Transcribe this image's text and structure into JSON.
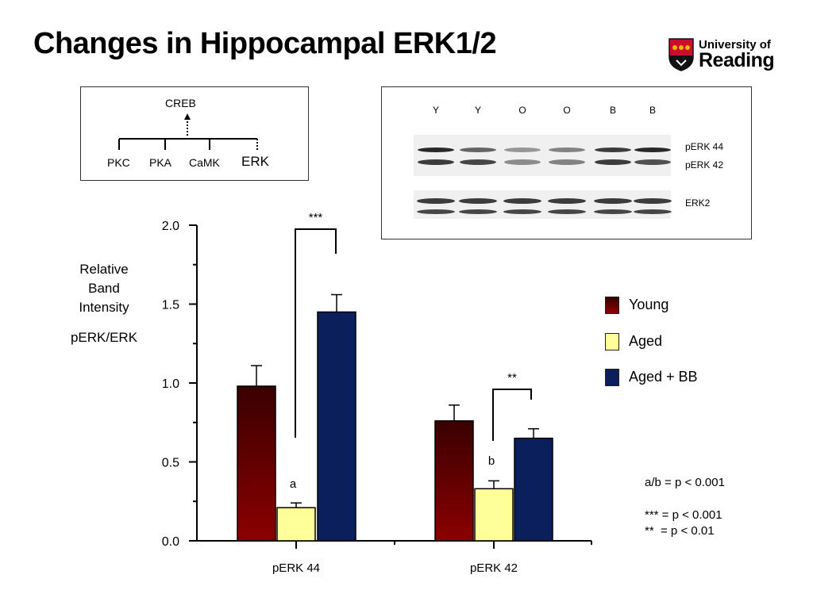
{
  "slide": {
    "title": "Changes in Hippocampal ERK1/2",
    "logo": {
      "line1": "University of",
      "line2": "Reading",
      "colors": {
        "red": "#c8102e",
        "black": "#111111",
        "gold": "#f2b300"
      }
    }
  },
  "pathway": {
    "top": "CREB",
    "inputs": [
      "PKC",
      "PKA",
      "CaMK",
      "ERK"
    ]
  },
  "blot": {
    "lanes": [
      "Y",
      "Y",
      "O",
      "O",
      "B",
      "B"
    ],
    "labels": [
      "pERK 44",
      "pERK 42",
      "ERK2"
    ]
  },
  "chart_data": {
    "type": "bar",
    "categories": [
      "pERK 44",
      "pERK 42"
    ],
    "series": [
      {
        "name": "Young",
        "values": [
          0.98,
          0.76
        ],
        "errors": [
          0.13,
          0.1
        ],
        "color": "#8b0000"
      },
      {
        "name": "Aged",
        "values": [
          0.21,
          0.33
        ],
        "errors": [
          0.03,
          0.05
        ],
        "color": "#ffff99"
      },
      {
        "name": "Aged + BB",
        "values": [
          1.45,
          0.65
        ],
        "errors": [
          0.11,
          0.06
        ],
        "color": "#0a1f5c"
      }
    ],
    "ylabel_lines": [
      "Relative",
      "Band",
      "Intensity",
      "",
      "pERK/ERK"
    ],
    "yticks": [
      "0.0",
      "0.5",
      "1.0",
      "1.5",
      "2.0"
    ],
    "ylim": [
      0,
      2.0
    ],
    "grid": false,
    "legend": "right",
    "annotations": {
      "sig_perk44": "***",
      "sig_perk42": "**",
      "letter_perk44": "a",
      "letter_perk42": "b"
    },
    "notes": [
      "a/b = p < 0.001",
      "*** = p < 0.001",
      "**  = p < 0.01"
    ]
  }
}
